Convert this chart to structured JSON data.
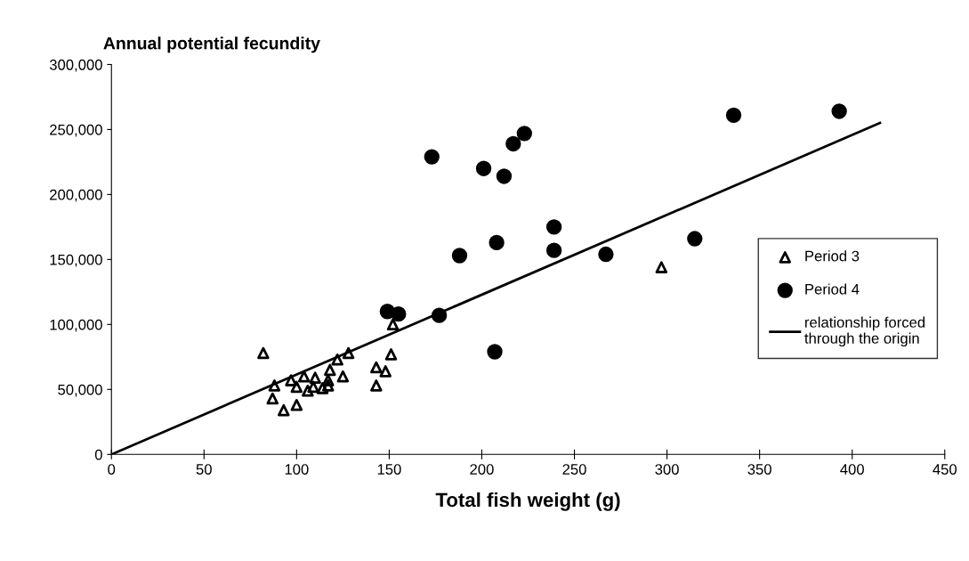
{
  "chart_data": {
    "type": "scatter",
    "ylabel": "Annual potential fecundity",
    "xlabel": "Total fish weight (g)",
    "xlim": [
      0,
      450
    ],
    "xticks": [
      0,
      50,
      100,
      150,
      200,
      250,
      300,
      350,
      400,
      450
    ],
    "ylim": [
      0,
      300000
    ],
    "yticks": [
      {
        "value": 0,
        "label": "0"
      },
      {
        "value": 50000,
        "label": "50,000"
      },
      {
        "value": 100000,
        "label": "100,000"
      },
      {
        "value": 150000,
        "label": "150,000"
      },
      {
        "value": 200000,
        "label": "200,000"
      },
      {
        "value": 250000,
        "label": "250,000"
      },
      {
        "value": 300000,
        "label": "300,000"
      }
    ],
    "grid": false,
    "legend": "right",
    "series": [
      {
        "name": "Period 3",
        "marker": "triangle",
        "color": "#000000",
        "x": [
          82,
          88,
          87,
          93,
          100,
          97,
          100,
          104,
          106,
          110,
          109,
          114,
          117,
          117,
          118,
          122,
          128,
          125,
          143,
          148,
          143,
          151,
          152,
          297
        ],
        "values": [
          78000,
          53000,
          43000,
          34000,
          38000,
          57000,
          52000,
          60000,
          49000,
          59000,
          52000,
          51000,
          53000,
          57000,
          65000,
          73000,
          78000,
          60000,
          67000,
          64000,
          53000,
          77000,
          100000,
          144000
        ]
      },
      {
        "name": "Period 4",
        "marker": "circle",
        "color": "#000000",
        "x": [
          173,
          217,
          223,
          201,
          212,
          239,
          208,
          239,
          188,
          267,
          149,
          155,
          177,
          207,
          336,
          393,
          315
        ],
        "values": [
          229000,
          239000,
          247000,
          220000,
          214000,
          175000,
          163000,
          157000,
          153000,
          154000,
          110000,
          108000,
          107000,
          79000,
          261000,
          264000,
          166000
        ]
      },
      {
        "name": "relationship forced\nthrough the origin",
        "type": "line",
        "marker": "none",
        "line_style": "solid",
        "color": "#000000",
        "x": [
          0,
          415
        ],
        "values": [
          0,
          255000
        ]
      }
    ]
  }
}
